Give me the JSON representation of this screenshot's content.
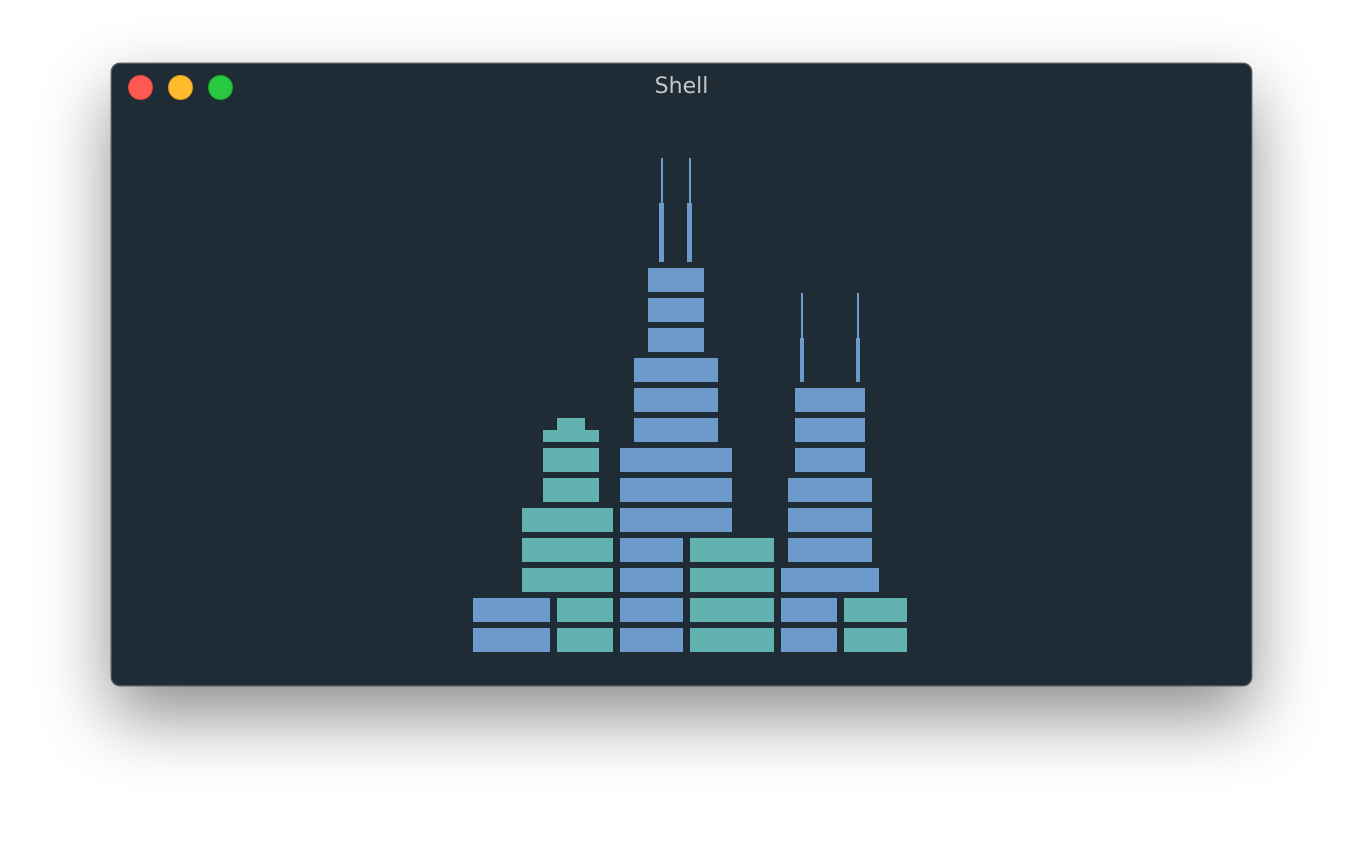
{
  "window": {
    "title": "Shell",
    "background": "#1f2b35",
    "title_color": "#c3c8cc"
  },
  "traffic_lights": {
    "close": "#fd5a53",
    "minimize": "#febb2e",
    "zoom": "#28c840"
  },
  "terminal_art": {
    "subject": "chicago-skyline-ascii-art",
    "colors": {
      "blue": "#6b9acb",
      "teal": "#62b3b0"
    }
  }
}
